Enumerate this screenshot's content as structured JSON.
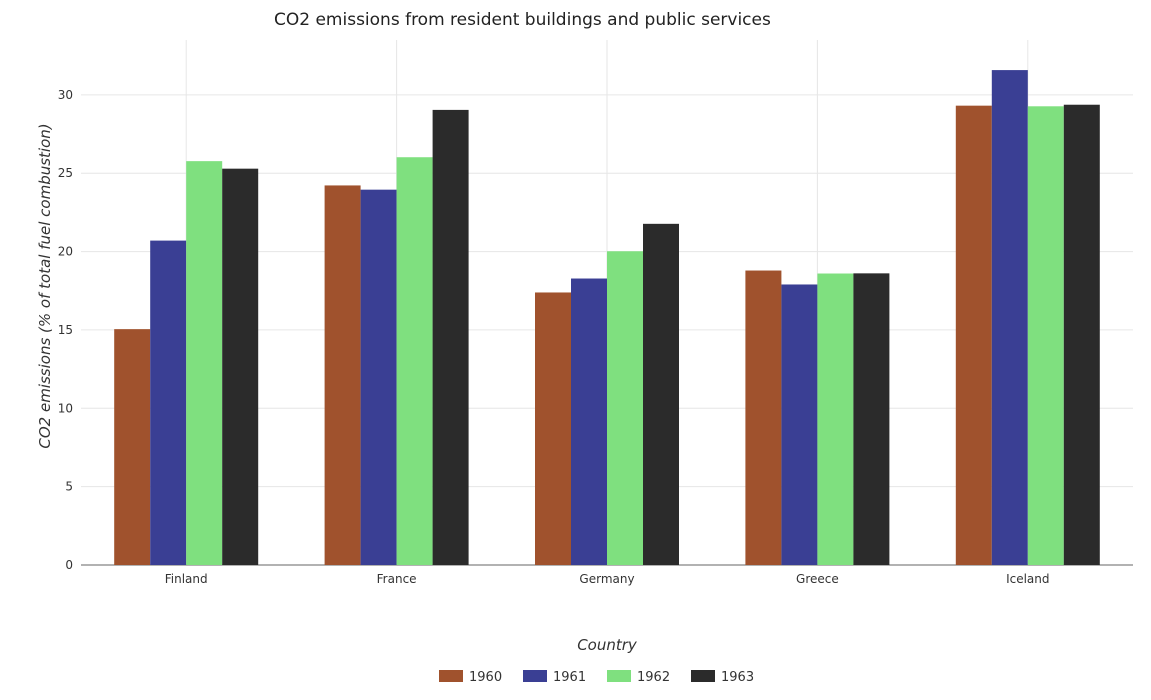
{
  "chart_data": {
    "type": "bar",
    "title": "CO2 emissions from resident buildings and public services",
    "xlabel": "Country",
    "ylabel": "CO2 emissions (% of total fuel combustion)",
    "categories": [
      "Finland",
      "France",
      "Germany",
      "Greece",
      "Iceland"
    ],
    "series": [
      {
        "name": "1960",
        "color": "#a0522d",
        "values": [
          15.05,
          24.22,
          17.39,
          18.79,
          29.31
        ]
      },
      {
        "name": "1961",
        "color": "#3a3f94",
        "values": [
          20.7,
          23.95,
          18.28,
          17.9,
          31.58
        ]
      },
      {
        "name": "1962",
        "color": "#7fe07f",
        "values": [
          25.77,
          26.02,
          20.02,
          18.6,
          29.27
        ]
      },
      {
        "name": "1963",
        "color": "#2b2b2b",
        "values": [
          25.29,
          29.04,
          21.77,
          18.61,
          29.37
        ]
      }
    ],
    "ylim": [
      0,
      33.5
    ],
    "yticks": [
      0,
      5,
      10,
      15,
      20,
      25,
      30
    ],
    "grid": true,
    "legend_position": "bottom-center"
  }
}
